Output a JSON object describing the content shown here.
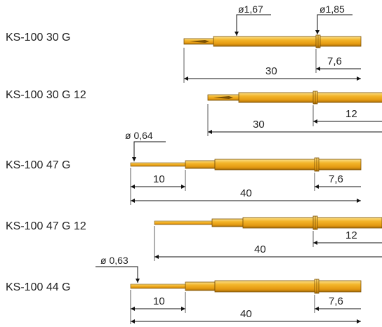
{
  "diagram": {
    "probes": [
      {
        "model": "KS-100 30 G",
        "diameters": [
          {
            "value": "ø1,67"
          },
          {
            "value": "ø1,85"
          }
        ],
        "dimensions": [
          {
            "value": "7,6"
          },
          {
            "value": "30"
          }
        ]
      },
      {
        "model": "KS-100 30 G 12",
        "diameters": [],
        "dimensions": [
          {
            "value": "12"
          },
          {
            "value": "30"
          }
        ]
      },
      {
        "model": "KS-100 47 G",
        "diameters": [
          {
            "value": "ø 0,64"
          }
        ],
        "dimensions": [
          {
            "value": "10"
          },
          {
            "value": "7,6"
          },
          {
            "value": "40"
          }
        ]
      },
      {
        "model": "KS-100 47 G 12",
        "diameters": [],
        "dimensions": [
          {
            "value": "12"
          },
          {
            "value": "40"
          }
        ]
      },
      {
        "model": "KS-100 44 G",
        "diameters": [
          {
            "value": "ø 0,63"
          }
        ],
        "dimensions": [
          {
            "value": "10"
          },
          {
            "value": "7,6"
          },
          {
            "value": "40"
          }
        ]
      }
    ],
    "colors": {
      "probe_gold": "#f0a51c",
      "probe_light": "#f9d56b",
      "probe_dark": "#8a5a06",
      "line": "#111111"
    }
  }
}
